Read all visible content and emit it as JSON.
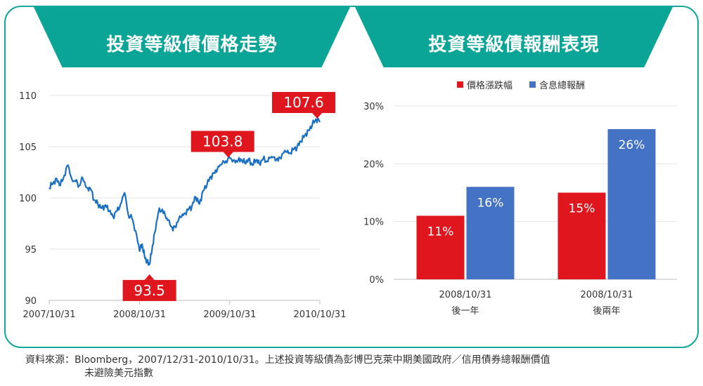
{
  "chart_data": [
    {
      "type": "line",
      "title": "投資等級債價格走勢",
      "x_ticks": [
        "2007/10/31",
        "2008/10/31",
        "2009/10/31",
        "2010/10/31"
      ],
      "y_ticks": [
        90,
        95,
        100,
        105,
        110
      ],
      "ylim": [
        90,
        110
      ],
      "grid": true,
      "series_color": "#1a6fc2",
      "annotation_color": "#e0161f",
      "annotations": [
        {
          "label": "93.5",
          "x": "2008/12/10",
          "y": 93.5
        },
        {
          "label": "103.8",
          "x": "2009/10/25",
          "y": 103.8
        },
        {
          "label": "107.6",
          "x": "2010/10/20",
          "y": 107.6
        }
      ],
      "series": [
        {
          "x": [
            "2007/10/31",
            "2007/11/15",
            "2007/11/30",
            "2007/12/15",
            "2007/12/31",
            "2008/01/15",
            "2008/01/31",
            "2008/02/15",
            "2008/02/29",
            "2008/03/15",
            "2008/03/31",
            "2008/04/15",
            "2008/04/30",
            "2008/05/15",
            "2008/05/31",
            "2008/06/15",
            "2008/06/30",
            "2008/07/15",
            "2008/07/31",
            "2008/08/15",
            "2008/08/31",
            "2008/09/15",
            "2008/09/30",
            "2008/10/15",
            "2008/10/31",
            "2008/11/10",
            "2008/11/20",
            "2008/11/30",
            "2008/12/10",
            "2008/12/20",
            "2008/12/31",
            "2009/01/15",
            "2009/01/31",
            "2009/02/15",
            "2009/02/28",
            "2009/03/15",
            "2009/03/31",
            "2009/04/15",
            "2009/04/30",
            "2009/05/15",
            "2009/05/31",
            "2009/06/15",
            "2009/06/30",
            "2009/07/15",
            "2009/07/31",
            "2009/08/15",
            "2009/08/31",
            "2009/09/15",
            "2009/09/30",
            "2009/10/15",
            "2009/10/31",
            "2009/11/15",
            "2009/11/30",
            "2009/12/15",
            "2009/12/31",
            "2010/01/15",
            "2010/01/31",
            "2010/02/15",
            "2010/02/28",
            "2010/03/15",
            "2010/03/31",
            "2010/04/15",
            "2010/04/30",
            "2010/05/15",
            "2010/05/31",
            "2010/06/15",
            "2010/06/30",
            "2010/07/15",
            "2010/07/31",
            "2010/08/15",
            "2010/08/31",
            "2010/09/15",
            "2010/09/30",
            "2010/10/15",
            "2010/10/31"
          ],
          "values": [
            101.0,
            101.4,
            101.9,
            101.2,
            102.2,
            103.2,
            101.8,
            101.6,
            101.2,
            101.9,
            101.0,
            100.9,
            99.8,
            99.4,
            99.0,
            99.3,
            98.7,
            98.2,
            98.7,
            99.4,
            100.5,
            98.4,
            98.0,
            96.8,
            94.8,
            95.5,
            94.3,
            93.8,
            93.5,
            94.9,
            96.6,
            98.6,
            98.9,
            98.0,
            97.8,
            96.8,
            97.6,
            98.1,
            98.5,
            98.8,
            99.2,
            100.1,
            99.4,
            100.7,
            101.3,
            102.1,
            102.4,
            103.1,
            103.3,
            103.6,
            103.9,
            103.7,
            103.5,
            103.8,
            103.4,
            103.8,
            103.2,
            103.7,
            103.4,
            103.8,
            103.6,
            103.9,
            104.0,
            103.6,
            104.3,
            104.5,
            104.4,
            104.7,
            105.0,
            105.5,
            106.1,
            106.6,
            107.1,
            107.7,
            107.4
          ]
        }
      ]
    },
    {
      "type": "bar",
      "title": "投資等級債報酬表現",
      "categories": [
        [
          "2008/10/31",
          "後一年"
        ],
        [
          "2008/10/31",
          "後兩年"
        ]
      ],
      "y_ticks": [
        "0%",
        "10%",
        "20%",
        "30%"
      ],
      "ylim": [
        0,
        30
      ],
      "grid": true,
      "legend_position": "top",
      "series": [
        {
          "name": "價格漲跌幅",
          "color": "#e0161f",
          "values": [
            11,
            15
          ],
          "labels": [
            "11%",
            "15%"
          ]
        },
        {
          "name": "含息總報酬",
          "color": "#4472c4",
          "values": [
            16,
            26
          ],
          "labels": [
            "16%",
            "26%"
          ]
        }
      ]
    }
  ],
  "header": {
    "left_title": "投資等級債價格走勢",
    "right_title": "投資等級債報酬表現"
  },
  "footer": {
    "source_line1": "資料來源：Bloomberg，2007/12/31-2010/10/31。上述投資等級債為彭博巴克萊中期美國政府／信用債券總報酬價值",
    "source_line2": "未避險美元指數"
  }
}
